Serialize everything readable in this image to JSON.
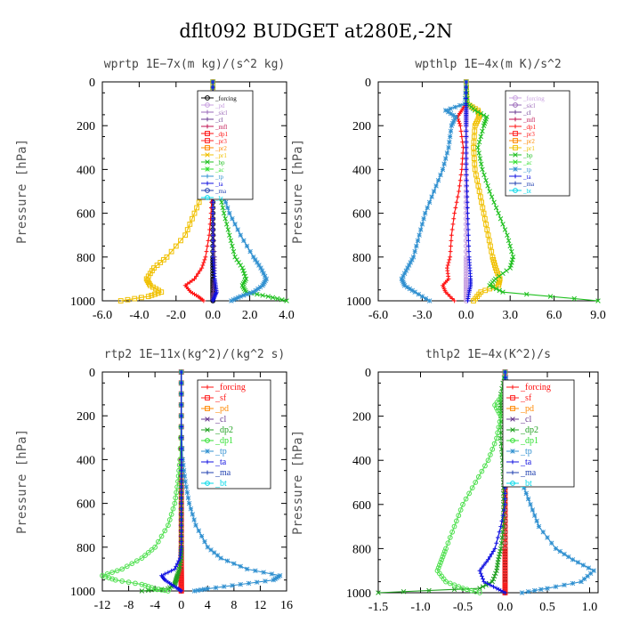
{
  "figure": {
    "title": "dflt092  BUDGET at280E,-2N",
    "colors": {
      "forcing": "#000000",
      "pd": "#c8a0e0",
      "sicl": "#9a68b8",
      "cl": "#6a3a90",
      "mfl": "#c01050",
      "dp1": "#ff1010",
      "dp2": "#20a020",
      "pr3": "#ff2020",
      "pr2": "#ff8800",
      "pr1": "#f0c000",
      "bp": "#20c020",
      "ac": "#30e030",
      "tp": "#3090d0",
      "ta": "#1010e0",
      "ma": "#2040b0",
      "bt": "#00d8e8",
      "sf": "#ff2020",
      "dp1b": "#50e050"
    }
  },
  "chart_data": [
    {
      "type": "line",
      "title": "wprtp  1E−7x(m kg)/(s^2 kg)",
      "ylabel": "Pressure [hPa]",
      "xlabel": "",
      "xlim": [
        -6.0,
        4.0
      ],
      "ylim": [
        1000,
        0
      ],
      "xticks": [
        "-6.0",
        "-4.0",
        "-2.0",
        "0.0",
        "2.0",
        "4.0"
      ],
      "yticks": [
        "0",
        "200",
        "400",
        "600",
        "800",
        "1000"
      ],
      "legend": [
        "_forcing",
        "_pd",
        "_sicl",
        "_cl",
        "_mfl",
        "_dp1",
        "_pr3",
        "_pr2",
        "_pr1",
        "_bp",
        "_ac",
        "_tp",
        "_ta",
        "_ma",
        "_bt"
      ],
      "legend_position": "top-right",
      "levels": [
        0,
        100,
        200,
        300,
        400,
        500,
        600,
        700,
        800,
        850,
        900,
        930,
        960,
        980,
        1000
      ],
      "series": [
        {
          "name": "_forcing",
          "color_key": "forcing",
          "marker": "circle",
          "values": [
            0,
            0,
            0,
            0,
            0,
            0,
            0,
            0,
            0,
            0,
            0,
            0,
            0,
            0,
            0
          ]
        },
        {
          "name": "_cl",
          "color_key": "cl",
          "marker": "cross",
          "values": [
            0,
            0,
            0,
            0,
            0,
            0,
            0.02,
            0.05,
            0.1,
            0.1,
            0.08,
            0.05,
            0.02,
            0,
            0
          ]
        },
        {
          "name": "_dp1",
          "color_key": "dp1",
          "marker": "plus",
          "values": [
            0,
            0,
            0,
            0,
            0,
            -0.05,
            -0.1,
            -0.2,
            -0.4,
            -0.6,
            -1.0,
            -1.5,
            -1.2,
            -0.8,
            -0.5
          ]
        },
        {
          "name": "_pr1",
          "color_key": "pr1",
          "marker": "square",
          "values": [
            0,
            0,
            -0.01,
            -0.05,
            -0.2,
            -0.5,
            -1.0,
            -1.5,
            -2.5,
            -3.2,
            -3.6,
            -3.4,
            -2.8,
            -3.5,
            -5.0
          ]
        },
        {
          "name": "_bp",
          "color_key": "bp",
          "marker": "x",
          "values": [
            0,
            0,
            0.01,
            0.05,
            0.15,
            0.35,
            0.6,
            0.9,
            1.2,
            1.6,
            1.8,
            1.6,
            1.8,
            3.0,
            4.0
          ]
        },
        {
          "name": "_tp",
          "color_key": "tp",
          "marker": "star",
          "values": [
            0,
            0,
            0.02,
            0.1,
            0.25,
            0.5,
            0.9,
            1.5,
            2.2,
            2.6,
            2.9,
            2.7,
            2.2,
            1.5,
            1.0
          ]
        },
        {
          "name": "_ta",
          "color_key": "ta",
          "marker": "plus",
          "values": [
            0,
            0,
            0,
            0,
            0,
            0,
            0,
            0,
            0,
            0.05,
            0.1,
            0.15,
            0.2,
            0.1,
            0
          ]
        }
      ]
    },
    {
      "type": "line",
      "title": "wpthlp  1E−4x(m K)/s^2",
      "ylabel": "Pressure [hPa]",
      "xlabel": "",
      "xlim": [
        -6.0,
        9.0
      ],
      "ylim": [
        1000,
        0
      ],
      "xticks": [
        "-6.0",
        "-3.0",
        "0.0",
        "3.0",
        "6.0",
        "9.0"
      ],
      "yticks": [
        "0",
        "200",
        "400",
        "600",
        "800",
        "1000"
      ],
      "legend": [
        "_forcing",
        "_sicl",
        "_cl",
        "_mfl",
        "_dp1",
        "_pr3",
        "_pr2",
        "_pr1",
        "_bp",
        "_ac",
        "_tp",
        "_ta",
        "_ma",
        "_bt"
      ],
      "legend_position": "top-right",
      "levels": [
        0,
        100,
        130,
        160,
        200,
        300,
        400,
        500,
        600,
        700,
        800,
        850,
        900,
        930,
        960,
        1000
      ],
      "series": [
        {
          "name": "_forcing",
          "color_key": "pd",
          "marker": "circle",
          "values": [
            0,
            0,
            0,
            0,
            0,
            0,
            0,
            0,
            0,
            0,
            0,
            0,
            0,
            0,
            0,
            0
          ]
        },
        {
          "name": "_dp1",
          "color_key": "dp1",
          "marker": "plus",
          "values": [
            0,
            -0.05,
            -0.3,
            -0.6,
            -0.4,
            -0.2,
            -0.3,
            -0.5,
            -0.8,
            -1.0,
            -1.1,
            -1.3,
            -1.2,
            -1.6,
            -1.4,
            -0.8
          ]
        },
        {
          "name": "_pr1",
          "color_key": "pr1",
          "marker": "square",
          "values": [
            0,
            0.05,
            0.8,
            0.9,
            0.6,
            0.5,
            0.6,
            0.9,
            1.2,
            1.5,
            1.8,
            2.0,
            2.3,
            2.2,
            1.0,
            0.5
          ]
        },
        {
          "name": "_bp",
          "color_key": "bp",
          "marker": "x",
          "values": [
            0,
            0.1,
            0.6,
            1.4,
            1.2,
            0.8,
            1.1,
            1.6,
            2.2,
            2.8,
            3.2,
            3.0,
            2.0,
            1.6,
            2.5,
            9.0
          ]
        },
        {
          "name": "_tp",
          "color_key": "tp",
          "marker": "star",
          "values": [
            0,
            -0.1,
            -1.4,
            -0.7,
            -1.0,
            -1.2,
            -1.6,
            -2.2,
            -2.8,
            -3.2,
            -3.6,
            -4.0,
            -4.4,
            -4.2,
            -3.5,
            -2.5
          ]
        },
        {
          "name": "_ta",
          "color_key": "ta",
          "marker": "plus",
          "values": [
            0,
            0,
            0,
            0,
            0,
            0,
            0,
            0.05,
            0.1,
            0.15,
            0.2,
            0.25,
            0.3,
            0.3,
            0.2,
            0.1
          ]
        }
      ]
    },
    {
      "type": "line",
      "title": "rtp2  1E−11x(kg^2)/(kg^2 s)",
      "ylabel": "Pressure [hPa]",
      "xlabel": "",
      "xlim": [
        -12,
        16
      ],
      "ylim": [
        1000,
        0
      ],
      "xticks": [
        "-12",
        "-8",
        "-4",
        "0",
        "4",
        "8",
        "12",
        "16"
      ],
      "yticks": [
        "0",
        "200",
        "400",
        "600",
        "800",
        "1000"
      ],
      "legend": [
        "_forcing",
        "_sf",
        "_pd",
        "_cl",
        "_dp2",
        "_dp1",
        "_tp",
        "_ta",
        "_ma",
        "_bt"
      ],
      "legend_position": "top-right",
      "levels": [
        0,
        200,
        400,
        500,
        600,
        700,
        800,
        850,
        900,
        930,
        950,
        970,
        990,
        1000
      ],
      "series": [
        {
          "name": "_forcing",
          "color_key": "forcing",
          "marker": "circle",
          "values": [
            0,
            0,
            0,
            0,
            0,
            0,
            0,
            0,
            0,
            0,
            0,
            0,
            0,
            0
          ]
        },
        {
          "name": "_sf",
          "color_key": "sf",
          "marker": "square",
          "values": [
            0,
            0,
            0,
            0,
            0,
            0,
            0,
            0,
            0,
            0,
            0,
            0,
            0,
            0
          ]
        },
        {
          "name": "_dp2",
          "color_key": "dp2",
          "marker": "x",
          "values": [
            0,
            0,
            0,
            0,
            0,
            0,
            0,
            0,
            -0.3,
            -0.6,
            -0.8,
            -1.0,
            -2.0,
            -6.0
          ]
        },
        {
          "name": "_dp1",
          "color_key": "dp1b",
          "marker": "circle",
          "values": [
            0,
            0,
            -0.2,
            -0.5,
            -1.0,
            -2.0,
            -4.0,
            -6.0,
            -9.0,
            -12.0,
            -10.0,
            -6.0,
            -4.0,
            -2.0
          ]
        },
        {
          "name": "_tp",
          "color_key": "tp",
          "marker": "star",
          "values": [
            0,
            0,
            0.2,
            0.6,
            1.2,
            2.2,
            4.0,
            6.0,
            10.0,
            15.0,
            14.0,
            9.0,
            4.0,
            2.0
          ]
        },
        {
          "name": "_ta",
          "color_key": "ta",
          "marker": "plus",
          "values": [
            0,
            0,
            0,
            0,
            0,
            0,
            0,
            -0.2,
            -1.0,
            -3.0,
            -2.5,
            -1.5,
            -0.5,
            0
          ]
        }
      ]
    },
    {
      "type": "line",
      "title": "thlp2  1E−4x(K^2)/s",
      "ylabel": "Pressure [hPa]",
      "xlabel": "",
      "xlim": [
        -1.5,
        1.1
      ],
      "ylim": [
        1000,
        0
      ],
      "xticks": [
        "-1.5",
        "-1.0",
        "-0.5",
        "0.0",
        "0.5",
        "1.0"
      ],
      "yticks": [
        "0",
        "200",
        "400",
        "600",
        "800",
        "1000"
      ],
      "legend": [
        "_forcing",
        "_sf",
        "_pd",
        "_cl",
        "_dp2",
        "_dp1",
        "_tp",
        "_ta",
        "_ma",
        "_bt"
      ],
      "legend_position": "top-right",
      "levels": [
        0,
        100,
        150,
        200,
        300,
        400,
        500,
        600,
        700,
        800,
        850,
        900,
        950,
        980,
        1000
      ],
      "series": [
        {
          "name": "_forcing",
          "color_key": "forcing",
          "marker": "circle",
          "values": [
            0,
            0,
            0,
            0,
            0,
            0,
            0,
            0,
            0,
            0,
            0,
            0,
            0,
            0,
            0
          ]
        },
        {
          "name": "_sf",
          "color_key": "sf",
          "marker": "square",
          "values": [
            0,
            0,
            0,
            0,
            0,
            0,
            0,
            0,
            0,
            0,
            0,
            0,
            0,
            0,
            0
          ]
        },
        {
          "name": "_dp2",
          "color_key": "dp2",
          "marker": "x",
          "values": [
            0,
            -0.05,
            -0.05,
            -0.05,
            -0.05,
            -0.03,
            -0.02,
            -0.02,
            -0.02,
            -0.05,
            -0.08,
            -0.1,
            -0.15,
            -0.3,
            -1.5
          ]
        },
        {
          "name": "_dp1",
          "color_key": "dp1b",
          "marker": "circle",
          "values": [
            0,
            -0.02,
            -0.12,
            -0.05,
            -0.1,
            -0.2,
            -0.35,
            -0.5,
            -0.6,
            -0.7,
            -0.75,
            -0.8,
            -0.7,
            -0.5,
            -0.3
          ]
        },
        {
          "name": "_tp",
          "color_key": "tp",
          "marker": "star",
          "values": [
            0,
            0.05,
            0.12,
            0.06,
            0.08,
            0.15,
            0.2,
            0.3,
            0.4,
            0.6,
            0.8,
            1.05,
            0.9,
            0.5,
            0.2
          ]
        },
        {
          "name": "_ta",
          "color_key": "ta",
          "marker": "plus",
          "values": [
            0,
            0,
            0,
            0,
            0,
            0,
            0,
            0,
            -0.05,
            -0.12,
            -0.2,
            -0.3,
            -0.25,
            -0.1,
            0
          ]
        }
      ]
    }
  ]
}
